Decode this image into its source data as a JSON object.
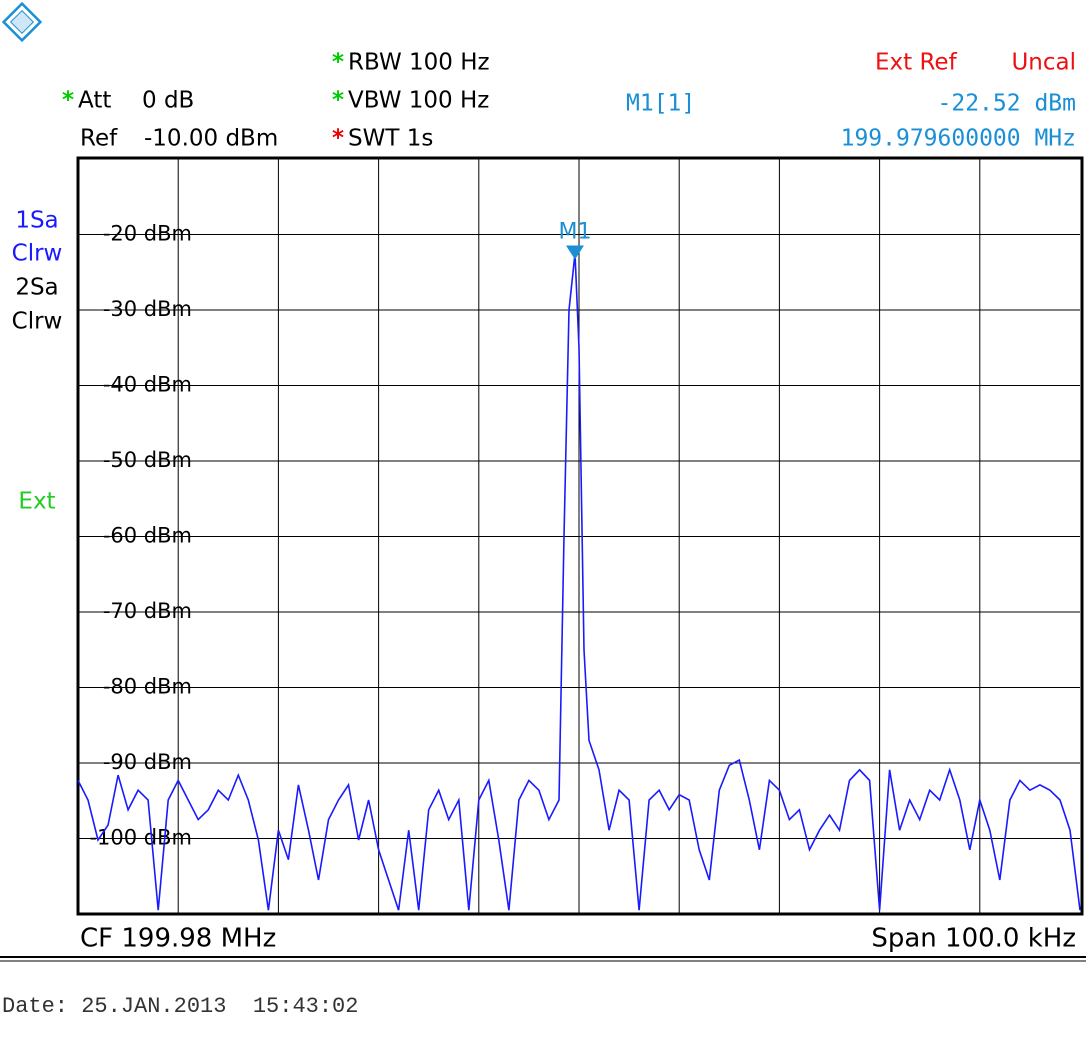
{
  "chart_data": {
    "type": "line",
    "header": {
      "settings": [
        {
          "flag": "*",
          "flag_color": "#00cc00",
          "text": "Att",
          "value": "0 dB"
        },
        {
          "text": "Ref",
          "value": "-10.00 dBm"
        },
        {
          "flag": "*",
          "flag_color": "#00cc00",
          "text": "RBW 100 Hz"
        },
        {
          "flag": "*",
          "flag_color": "#00cc00",
          "text": "VBW 100 Hz"
        },
        {
          "flag": "*",
          "flag_color": "#ee0000",
          "text": "SWT 1s"
        }
      ],
      "status": [
        "Ext Ref",
        "Uncal"
      ]
    },
    "side_labels": [
      {
        "text": "1Sa",
        "color": "#1a1aff"
      },
      {
        "text": "Clrw",
        "color": "#1a1aff"
      },
      {
        "text": "2Sa",
        "color": "#000000"
      },
      {
        "text": "Clrw",
        "color": "#000000"
      },
      {
        "text": "Ext",
        "color": "#22cc22"
      }
    ],
    "marker": {
      "name": "M1",
      "readout_label": "M1[1]",
      "readout_value": "-22.52 dBm",
      "readout_freq": "199.979600000 MHz",
      "x": 199.9796,
      "y": -22.52,
      "color": "#1a8fd6"
    },
    "footer_left": "CF 199.98 MHz",
    "footer_right": "Span 100.0 kHz",
    "date": "Date: 25.JAN.2013  15:43:02",
    "xlim": [
      199.93,
      200.03
    ],
    "ylim": [
      -110,
      -10
    ],
    "yticks": [
      {
        "value": -20,
        "label": "-20 dBm"
      },
      {
        "value": -30,
        "label": "-30 dBm"
      },
      {
        "value": -40,
        "label": "-40 dBm"
      },
      {
        "value": -50,
        "label": "-50 dBm"
      },
      {
        "value": -60,
        "label": "-60 dBm"
      },
      {
        "value": -70,
        "label": "-70 dBm"
      },
      {
        "value": -80,
        "label": "-80 dBm"
      },
      {
        "value": -90,
        "label": "-90 dBm"
      },
      {
        "value": -100,
        "label": "-100 dBm"
      }
    ],
    "grid": true,
    "x": [
      199.93,
      199.931,
      199.932,
      199.933,
      199.934,
      199.935,
      199.936,
      199.937,
      199.938,
      199.939,
      199.94,
      199.941,
      199.942,
      199.943,
      199.944,
      199.945,
      199.946,
      199.947,
      199.948,
      199.949,
      199.95,
      199.951,
      199.952,
      199.953,
      199.954,
      199.955,
      199.956,
      199.957,
      199.958,
      199.959,
      199.96,
      199.961,
      199.962,
      199.963,
      199.964,
      199.965,
      199.966,
      199.967,
      199.968,
      199.969,
      199.97,
      199.971,
      199.972,
      199.973,
      199.974,
      199.975,
      199.976,
      199.977,
      199.978,
      199.9785,
      199.979,
      199.9796,
      199.98,
      199.9805,
      199.981,
      199.982,
      199.983,
      199.984,
      199.985,
      199.986,
      199.987,
      199.988,
      199.989,
      199.99,
      199.991,
      199.992,
      199.993,
      199.994,
      199.995,
      199.996,
      199.997,
      199.998,
      199.999,
      200.0,
      200.001,
      200.002,
      200.003,
      200.004,
      200.005,
      200.006,
      200.007,
      200.008,
      200.009,
      200.01,
      200.011,
      200.012,
      200.013,
      200.014,
      200.015,
      200.016,
      200.017,
      200.018,
      200.019,
      200.02,
      200.021,
      200.022,
      200.023,
      200.024,
      200.025,
      200.026,
      200.027,
      200.028,
      200.029,
      200.03
    ],
    "series": [
      {
        "name": "1Sa",
        "color": "#1a1aff",
        "values": [
          -92.3,
          -94.9,
          -100.2,
          -98.2,
          -91.6,
          -96.2,
          -93.6,
          -94.9,
          -109.5,
          -94.9,
          -92.3,
          -94.9,
          -97.5,
          -96.2,
          -93.6,
          -94.9,
          -91.6,
          -94.9,
          -100.2,
          -109.5,
          -98.9,
          -102.8,
          -92.9,
          -98.9,
          -105.5,
          -97.5,
          -94.9,
          -92.9,
          -100.2,
          -94.9,
          -101.5,
          -105.5,
          -109.5,
          -98.9,
          -109.5,
          -96.2,
          -93.6,
          -97.5,
          -94.9,
          -109.5,
          -94.9,
          -92.3,
          -100.2,
          -109.5,
          -94.9,
          -92.3,
          -93.6,
          -97.5,
          -94.9,
          -60,
          -30,
          -22.52,
          -35,
          -75,
          -87,
          -90.9,
          -98.9,
          -93.6,
          -94.9,
          -109.5,
          -94.9,
          -93.6,
          -96.2,
          -94.2,
          -94.9,
          -101.5,
          -105.5,
          -93.6,
          -90.3,
          -89.6,
          -94.9,
          -101.5,
          -92.3,
          -93.6,
          -97.5,
          -96.2,
          -101.5,
          -98.9,
          -96.9,
          -98.9,
          -92.3,
          -90.9,
          -92.3,
          -109.5,
          -90.9,
          -98.9,
          -94.9,
          -97.5,
          -93.6,
          -94.9,
          -90.9,
          -94.9,
          -101.5,
          -94.9,
          -98.9,
          -105.5,
          -94.9,
          -92.3,
          -93.6,
          -92.9,
          -93.6,
          -94.9,
          -98.9,
          -109.5
        ]
      }
    ]
  }
}
